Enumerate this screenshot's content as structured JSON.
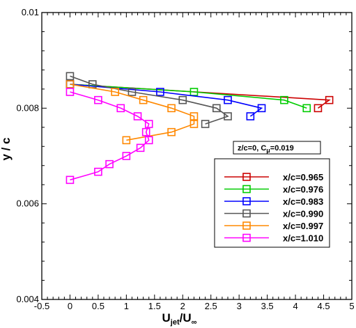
{
  "chart_data": {
    "type": "line",
    "xlabel": "U",
    "xlabel_sub_1": "jet",
    "xlabel_sep": "/U",
    "xlabel_sub_2": "∞",
    "ylabel": "y / c",
    "xlim": [
      -0.5,
      5
    ],
    "ylim": [
      0.004,
      0.01
    ],
    "x_ticks": [
      -0.5,
      0,
      0.5,
      1,
      1.5,
      2,
      2.5,
      3,
      3.5,
      4,
      4.5,
      5
    ],
    "x_tick_labels": [
      "-0.5",
      "0",
      "0.5",
      "1",
      "1.5",
      "2",
      "2.5",
      "3",
      "3.5",
      "4",
      "4.5",
      "5"
    ],
    "y_ticks": [
      0.004,
      0.006,
      0.008,
      0.01
    ],
    "y_tick_labels": [
      "0.004",
      "0.006",
      "0.008",
      "0.01"
    ],
    "annotation": {
      "text_before": "z/c=0, C",
      "text_sub": "μ",
      "text_after": "=0.019",
      "placement": "upper-right"
    },
    "legend_placement": "right",
    "series": [
      {
        "name": "x/c=0.965",
        "color": "#cc0000",
        "marker": "square",
        "points": [
          [
            0,
            0.0085
          ],
          [
            4.6,
            0.00817
          ],
          [
            4.4,
            0.008
          ]
        ]
      },
      {
        "name": "x/c=0.976",
        "color": "#00cc00",
        "marker": "square",
        "points": [
          [
            0,
            0.0085
          ],
          [
            2.2,
            0.00834
          ],
          [
            3.8,
            0.00817
          ],
          [
            4.2,
            0.008
          ]
        ]
      },
      {
        "name": "x/c=0.983",
        "color": "#0000ff",
        "marker": "square",
        "points": [
          [
            0,
            0.0085
          ],
          [
            1.6,
            0.00834
          ],
          [
            2.8,
            0.00817
          ],
          [
            3.4,
            0.008
          ],
          [
            3.2,
            0.00783
          ]
        ]
      },
      {
        "name": "x/c=0.990",
        "color": "#555555",
        "marker": "square",
        "points": [
          [
            0,
            0.00867
          ],
          [
            0.4,
            0.0085
          ],
          [
            1.1,
            0.00834
          ],
          [
            2.0,
            0.00817
          ],
          [
            2.6,
            0.008
          ],
          [
            2.8,
            0.00783
          ],
          [
            2.4,
            0.00767
          ]
        ]
      },
      {
        "name": "x/c=0.997",
        "color": "#ff8800",
        "marker": "square",
        "points": [
          [
            0,
            0.0085
          ],
          [
            0.8,
            0.00834
          ],
          [
            1.3,
            0.00817
          ],
          [
            1.8,
            0.008
          ],
          [
            2.2,
            0.00783
          ],
          [
            2.2,
            0.00767
          ],
          [
            1.8,
            0.0075
          ],
          [
            1.0,
            0.00733
          ]
        ]
      },
      {
        "name": "x/c=1.010",
        "color": "#ff00ff",
        "marker": "square",
        "points": [
          [
            0,
            0.00834
          ],
          [
            0.5,
            0.00817
          ],
          [
            0.9,
            0.008
          ],
          [
            1.2,
            0.00783
          ],
          [
            1.4,
            0.00767
          ],
          [
            1.35,
            0.0075
          ],
          [
            1.4,
            0.00733
          ],
          [
            1.25,
            0.00717
          ],
          [
            1.0,
            0.007
          ],
          [
            0.7,
            0.00683
          ],
          [
            0.5,
            0.00667
          ],
          [
            0,
            0.0065
          ]
        ]
      }
    ]
  }
}
